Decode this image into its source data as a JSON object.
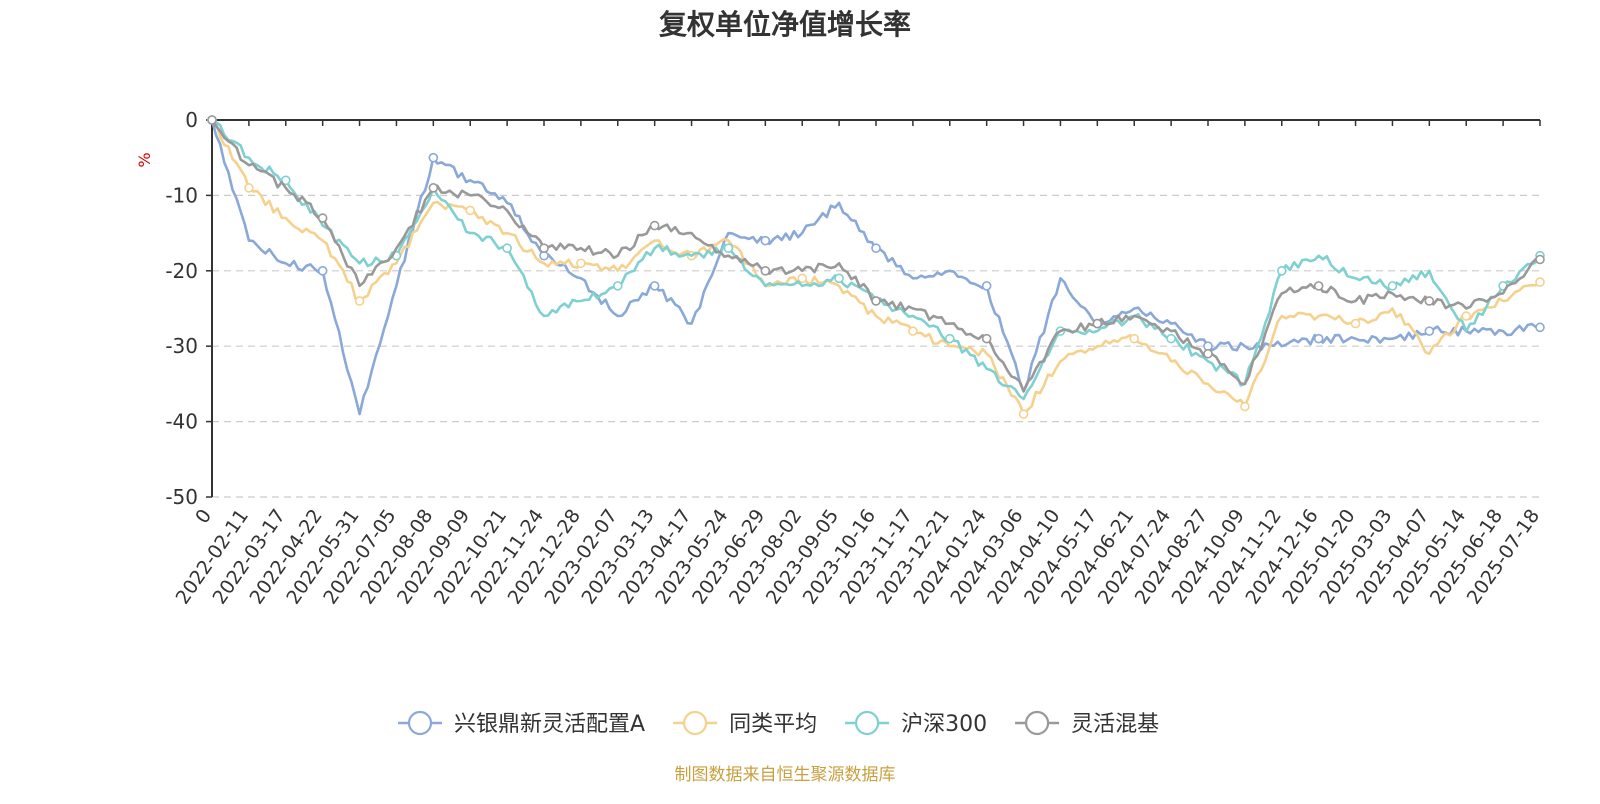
{
  "chart_data": {
    "type": "line",
    "title": "复权单位净值增长率",
    "ylabel": "%",
    "ylim": [
      -50,
      0
    ],
    "yticks": [
      0,
      -10,
      -20,
      -30,
      -40,
      -50
    ],
    "grid": true,
    "legend_position": "bottom",
    "x_origin_label": "0",
    "x": [
      "2022-02-11",
      "2022-03-17",
      "2022-04-22",
      "2022-05-31",
      "2022-07-05",
      "2022-08-08",
      "2022-09-09",
      "2022-10-21",
      "2022-11-24",
      "2022-12-28",
      "2023-02-07",
      "2023-03-13",
      "2023-04-17",
      "2023-05-24",
      "2023-06-29",
      "2023-08-02",
      "2023-09-05",
      "2023-10-16",
      "2023-11-17",
      "2023-12-21",
      "2024-01-24",
      "2024-03-06",
      "2024-04-10",
      "2024-05-17",
      "2024-06-21",
      "2024-07-24",
      "2024-08-27",
      "2024-10-09",
      "2024-11-12",
      "2024-12-16",
      "2025-01-20",
      "2025-03-03",
      "2025-04-07",
      "2025-05-14",
      "2025-06-18",
      "2025-07-18"
    ],
    "series": [
      {
        "name": "兴银鼎新灵活配置A",
        "color": "#8aa8d8",
        "start": 0,
        "values": [
          -16,
          -19,
          -20,
          -39,
          -22,
          -5,
          -8,
          -11,
          -18,
          -21,
          -26,
          -22,
          -27,
          -15,
          -16,
          -15,
          -11,
          -17,
          -21,
          -20,
          -22,
          -36,
          -21,
          -27,
          -25,
          -27,
          -30,
          -30,
          -30,
          -29,
          -29,
          -29,
          -28,
          -28,
          -28,
          -27.5
        ]
      },
      {
        "name": "同类平均",
        "color": "#f5d18e",
        "start": 0,
        "values": [
          -9,
          -13,
          -16,
          -24,
          -19,
          -11,
          -12,
          -15,
          -19,
          -19,
          -20,
          -16,
          -18,
          -16,
          -22,
          -21,
          -22,
          -26,
          -28,
          -30,
          -31,
          -39,
          -32,
          -30,
          -29,
          -32,
          -35,
          -38,
          -26,
          -26,
          -27,
          -25,
          -31,
          -26,
          -24,
          -21.5
        ]
      },
      {
        "name": "沪深300",
        "color": "#7fd0d0",
        "start": 0,
        "values": [
          -5,
          -8,
          -14,
          -19,
          -18,
          -9,
          -15,
          -17,
          -26,
          -24,
          -22,
          -17,
          -18,
          -17,
          -22,
          -22,
          -21,
          -24,
          -26,
          -29,
          -33,
          -37,
          -28,
          -28,
          -26,
          -29,
          -32,
          -35,
          -20,
          -18,
          -21,
          -22,
          -20,
          -28,
          -22,
          -18
        ]
      },
      {
        "name": "灵活混基",
        "color": "#999999",
        "start": 0,
        "values": [
          -6,
          -9,
          -13,
          -22,
          -17,
          -9,
          -10,
          -12,
          -17,
          -17,
          -18,
          -14,
          -15,
          -18,
          -20,
          -20,
          -19,
          -24,
          -25,
          -27,
          -29,
          -36,
          -28,
          -27,
          -26,
          -28,
          -31,
          -35,
          -23,
          -22,
          -24,
          -23,
          -24,
          -25,
          -23,
          -18.5
        ]
      }
    ]
  },
  "source_note": "制图数据来自恒生聚源数据库"
}
